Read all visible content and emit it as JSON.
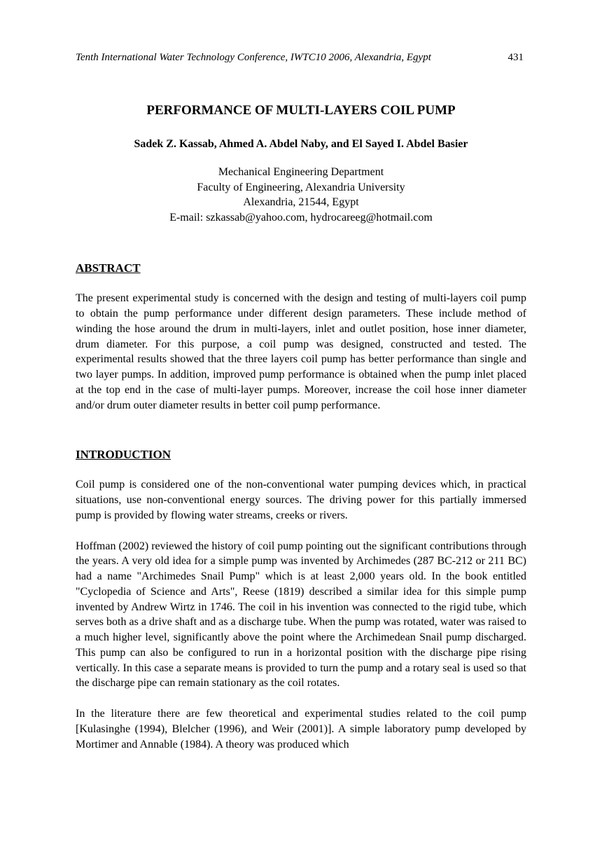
{
  "header": {
    "conference": "Tenth International Water Technology Conference, IWTC10 2006, Alexandria, Egypt",
    "pageNumber": "431"
  },
  "title": "PERFORMANCE OF MULTI-LAYERS COIL PUMP",
  "authors": "Sadek Z. Kassab, Ahmed A. Abdel Naby, and El Sayed I. Abdel Basier",
  "affiliation": {
    "line1": "Mechanical Engineering Department",
    "line2": "Faculty of Engineering, Alexandria University",
    "line3": "Alexandria, 21544, Egypt",
    "line4": "E-mail: szkassab@yahoo.com, hydrocareeg@hotmail.com"
  },
  "sections": {
    "abstract": {
      "heading": "ABSTRACT",
      "text": "The present experimental study is concerned with the design and testing of multi-layers coil pump to obtain the pump performance under different design parameters. These include method of winding the hose around the drum in multi-layers, inlet and outlet position, hose inner diameter, drum diameter. For this purpose, a coil pump was designed, constructed and tested. The experimental results showed that the three layers coil pump has better performance than single and two layer pumps. In addition, improved pump performance is obtained when the pump inlet placed at the top end in the case of multi-layer pumps. Moreover, increase the coil hose inner diameter and/or drum outer diameter results in better coil pump performance."
    },
    "introduction": {
      "heading": "INTRODUCTION",
      "para1": "Coil pump is considered one of the non-conventional water pumping devices which, in practical situations, use non-conventional energy sources. The driving power for this partially immersed pump is provided by flowing water streams, creeks or rivers.",
      "para2": "Hoffman (2002) reviewed the history of coil pump pointing out the significant contributions through the years. A very old idea for a simple pump was invented by Archimedes (287 BC-212 or 211 BC) had a name \"Archimedes Snail Pump\" which is at least 2,000 years old. In the book entitled \"Cyclopedia of Science and Arts\", Reese (1819) described a similar idea for this simple pump invented by Andrew Wirtz in 1746. The coil in his invention was connected to the rigid tube, which serves both as a drive shaft and as a discharge tube. When the pump was rotated, water was raised to a much higher level, significantly above the point where the Archimedean Snail pump discharged. This pump can also be configured to run in a horizontal position with the discharge pipe rising vertically. In this case a separate means is provided to turn the pump and a rotary seal is used so that the discharge pipe can remain stationary as the coil rotates.",
      "para3": "In the literature there are few theoretical and experimental studies related to the coil pump [Kulasinghe (1994), Blelcher (1996), and Weir (2001)]. A simple laboratory pump developed by Mortimer and Annable (1984). A theory was produced which"
    }
  }
}
